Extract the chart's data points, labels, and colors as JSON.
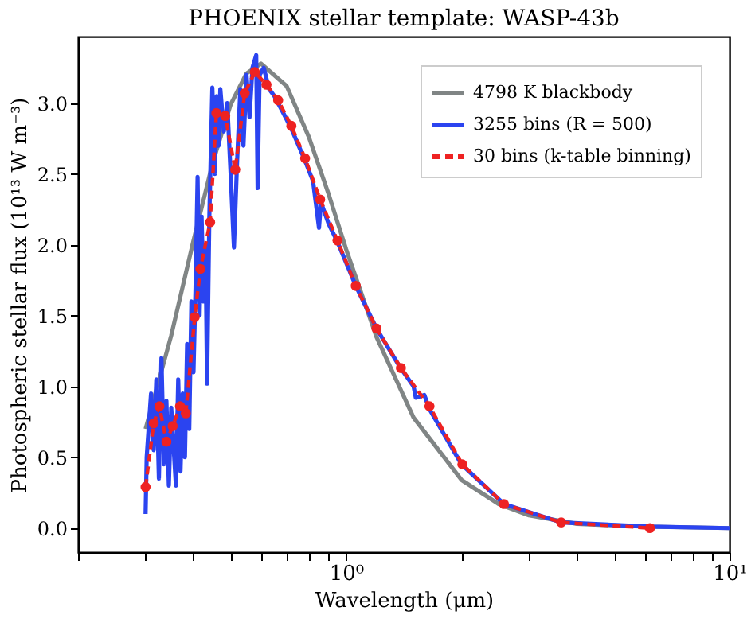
{
  "chart_data": {
    "type": "line",
    "title": "PHOENIX stellar template: WASP-43b",
    "xlabel": "Wavelength (μm)",
    "ylabel": "Photospheric stellar flux (10¹³ W m⁻³)",
    "log": "x",
    "xlim": [
      0.2,
      10
    ],
    "ylim": [
      -0.17,
      3.47
    ],
    "xticks": [
      {
        "value": 0.2,
        "label": null
      },
      {
        "value": 0.3,
        "label": null
      },
      {
        "value": 0.4,
        "label": null
      },
      {
        "value": 0.5,
        "label": null
      },
      {
        "value": 0.6,
        "label": null
      },
      {
        "value": 0.7,
        "label": null
      },
      {
        "value": 0.8,
        "label": null
      },
      {
        "value": 0.9,
        "label": null
      },
      {
        "value": 1,
        "label": "10⁰"
      },
      {
        "value": 2,
        "label": null
      },
      {
        "value": 3,
        "label": null
      },
      {
        "value": 4,
        "label": null
      },
      {
        "value": 5,
        "label": null
      },
      {
        "value": 6,
        "label": null
      },
      {
        "value": 7,
        "label": null
      },
      {
        "value": 8,
        "label": null
      },
      {
        "value": 9,
        "label": null
      },
      {
        "value": 10,
        "label": "10¹"
      }
    ],
    "yticks": [
      {
        "value": 0,
        "label": "0.0"
      },
      0.5,
      {
        "value": 1,
        "label": "1.0"
      },
      1.5,
      {
        "value": 2,
        "label": "2.0"
      },
      2.5,
      {
        "value": 3,
        "label": "3.0"
      }
    ],
    "grid": false,
    "legend": "top right",
    "series": [
      {
        "name": "4798 K blackbody",
        "color": "#808585",
        "line_style": "solid",
        "marker": "none",
        "x": [
          0.3,
          0.35,
          0.4,
          0.45,
          0.5,
          0.55,
          0.6,
          0.7,
          0.8,
          0.9,
          1.0,
          1.2,
          1.5,
          2.0,
          2.5,
          3,
          4,
          6,
          10
        ],
        "values": [
          0.7,
          1.36,
          2.03,
          2.59,
          2.99,
          3.21,
          3.28,
          3.12,
          2.76,
          2.36,
          1.97,
          1.35,
          0.78,
          0.34,
          0.17,
          0.09,
          0.03,
          0.01,
          0.0
        ]
      },
      {
        "name": "3255 bins (R = 500)",
        "color": "#2b44f0",
        "line_style": "solid",
        "marker": "none",
        "x": [
          0.3,
          0.302,
          0.31,
          0.315,
          0.32,
          0.325,
          0.33,
          0.335,
          0.34,
          0.345,
          0.35,
          0.36,
          0.365,
          0.37,
          0.375,
          0.38,
          0.385,
          0.39,
          0.395,
          0.4,
          0.405,
          0.41,
          0.415,
          0.42,
          0.425,
          0.43,
          0.434,
          0.44,
          0.448,
          0.455,
          0.46,
          0.465,
          0.47,
          0.48,
          0.49,
          0.5,
          0.51,
          0.52,
          0.53,
          0.54,
          0.55,
          0.56,
          0.57,
          0.583,
          0.588,
          0.595,
          0.61,
          0.63,
          0.65,
          0.68,
          0.72,
          0.78,
          0.82,
          0.85,
          0.86,
          0.9,
          0.95,
          1.06,
          1.2,
          1.38,
          1.5,
          1.52,
          1.6,
          1.65,
          2.0,
          2.58,
          3.64,
          6.2,
          10
        ],
        "values": [
          0.1,
          0.5,
          0.95,
          0.55,
          1.05,
          0.35,
          1.2,
          0.45,
          0.9,
          0.3,
          0.85,
          0.3,
          1.05,
          0.4,
          0.95,
          0.5,
          1.3,
          0.7,
          1.6,
          1.1,
          1.7,
          2.48,
          1.5,
          2.2,
          1.6,
          2.0,
          1.02,
          2.2,
          3.11,
          2.5,
          3.05,
          2.7,
          3.1,
          2.8,
          3.0,
          2.5,
          1.98,
          2.6,
          3.1,
          2.7,
          3.2,
          2.9,
          3.25,
          3.34,
          2.4,
          3.2,
          3.25,
          3.1,
          3.05,
          2.95,
          2.82,
          2.6,
          2.45,
          2.12,
          2.3,
          2.15,
          2.02,
          1.71,
          1.41,
          1.14,
          1.0,
          0.92,
          0.94,
          0.84,
          0.45,
          0.17,
          0.04,
          0.01,
          0.0
        ]
      },
      {
        "name": "30 bins (k-table binning)",
        "color": "#ee2222",
        "line_style": "dashed",
        "marker": "circle",
        "x": [
          0.3,
          0.315,
          0.326,
          0.34,
          0.353,
          0.369,
          0.382,
          0.403,
          0.417,
          0.442,
          0.459,
          0.484,
          0.514,
          0.544,
          0.578,
          0.62,
          0.665,
          0.72,
          0.782,
          0.856,
          0.95,
          1.06,
          1.2,
          1.39,
          1.65,
          2.01,
          2.58,
          3.64,
          6.2
        ],
        "values": [
          0.29,
          0.74,
          0.86,
          0.61,
          0.72,
          0.86,
          0.81,
          1.49,
          1.83,
          2.16,
          2.93,
          2.91,
          2.53,
          3.07,
          3.22,
          3.13,
          3.02,
          2.84,
          2.61,
          2.32,
          2.03,
          1.71,
          1.41,
          1.13,
          0.86,
          0.45,
          0.17,
          0.04,
          0.0
        ]
      }
    ]
  }
}
